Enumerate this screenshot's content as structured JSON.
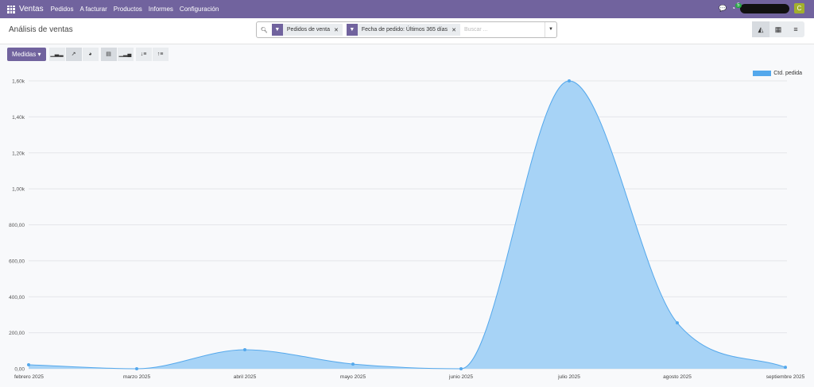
{
  "nav": {
    "app": "Ventas",
    "menu": [
      "Pedidos",
      "A facturar",
      "Productos",
      "Informes",
      "Configuración"
    ],
    "activity_count": "5",
    "avatar": "C"
  },
  "control": {
    "title": "Análisis de ventas",
    "facets": [
      "Pedidos de venta",
      "Fecha de pedido: Últimos 365 días"
    ],
    "search_placeholder": "Buscar ..."
  },
  "toolbar": {
    "measures": "Medidas"
  },
  "colors": {
    "accent": "#71639e",
    "series": "#54a8ec"
  },
  "chart_data": {
    "type": "area",
    "categories": [
      "febrero 2025",
      "marzo 2025",
      "abril 2025",
      "mayo 2025",
      "junio 2025",
      "julio 2025",
      "agosto 2025",
      "septiembre 2025"
    ],
    "series": [
      {
        "name": "Ctd. pedida",
        "values": [
          22,
          0,
          106,
          26,
          0,
          1600,
          255,
          8
        ]
      }
    ],
    "yticks": [
      0,
      200,
      400,
      600,
      800,
      1000,
      1200,
      1400,
      1600
    ],
    "ytick_labels": [
      "0,00",
      "200,00",
      "400,00",
      "600,00",
      "800,00",
      "1,00k",
      "1,20k",
      "1,40k",
      "1,60k"
    ],
    "ylim": [
      0,
      1600
    ],
    "grid": true,
    "legend": "top-right"
  }
}
